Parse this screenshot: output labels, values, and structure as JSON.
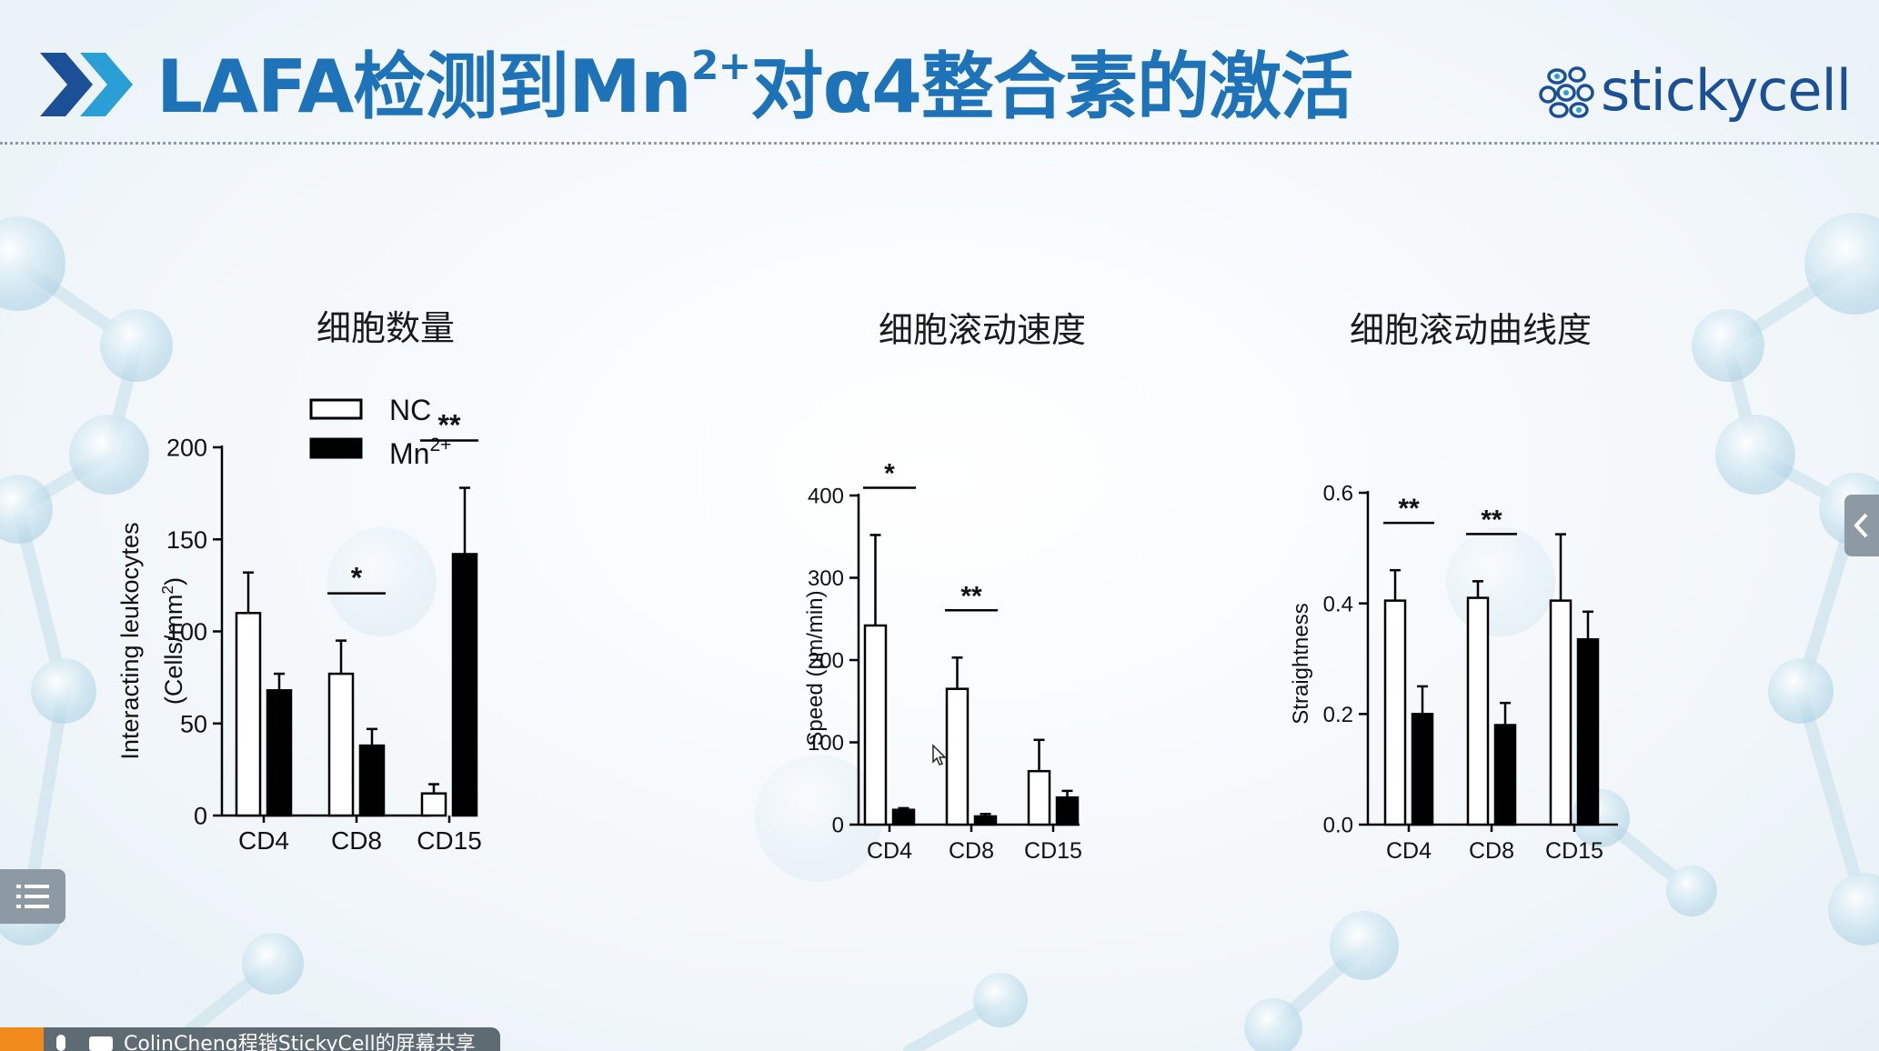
{
  "slide": {
    "title_main": "LAFA检测到Mn",
    "title_sup": "2+",
    "title_rest": "对α4整合素的激活",
    "brand_logo_text": "stickycell",
    "theme_colors": {
      "title": "#1e73b8",
      "logo": "#1b4f96",
      "logo_accent": "#2a9fd6",
      "chevron_dark": "#1b4f96",
      "chevron_light": "#2a9fd6"
    }
  },
  "legend": {
    "nc_label": "NC",
    "mn_label": "Mn",
    "mn_sup": "2+"
  },
  "panels": {
    "count_title": "细胞数量",
    "speed_title": "细胞滚动速度",
    "straightness_title": "细胞滚动曲线度"
  },
  "chart_data": [
    {
      "type": "bar",
      "title": "细胞数量",
      "ylabel": "Interacting leukocytes",
      "ylabel2": "(Cells/mm",
      "ylabel2_sup": "2",
      "ylabel2_end": ")",
      "categories": [
        "CD4",
        "CD8",
        "CD15"
      ],
      "ylim": [
        0,
        200
      ],
      "yticks": [
        0,
        50,
        100,
        150,
        200
      ],
      "series": [
        {
          "name": "NC",
          "values": [
            110,
            77,
            12
          ],
          "errors": [
            22,
            18,
            5
          ],
          "fill": "#ffffff"
        },
        {
          "name": "Mn2+",
          "values": [
            68,
            38,
            142
          ],
          "errors": [
            9,
            9,
            36
          ],
          "fill": "#000000"
        }
      ],
      "significance": [
        "",
        "*",
        "**"
      ],
      "legend_position": "top-left"
    },
    {
      "type": "bar",
      "title": "细胞滚动速度",
      "ylabel": "Speed (µm/min)",
      "categories": [
        "CD4",
        "CD8",
        "CD15"
      ],
      "ylim": [
        0,
        400
      ],
      "yticks": [
        0,
        100,
        200,
        300,
        400
      ],
      "series": [
        {
          "name": "NC",
          "values": [
            242,
            165,
            65
          ],
          "errors": [
            110,
            38,
            38
          ],
          "fill": "#ffffff"
        },
        {
          "name": "Mn2+",
          "values": [
            18,
            10,
            33
          ],
          "errors": [
            2,
            3,
            8
          ],
          "fill": "#000000"
        }
      ],
      "significance": [
        "*",
        "**",
        ""
      ]
    },
    {
      "type": "bar",
      "title": "细胞滚动曲线度",
      "ylabel": "Straightness",
      "categories": [
        "CD4",
        "CD8",
        "CD15"
      ],
      "ylim": [
        0,
        0.6
      ],
      "yticks": [
        "0.0",
        "0.2",
        "0.4",
        "0.6"
      ],
      "series": [
        {
          "name": "NC",
          "values": [
            0.405,
            0.41,
            0.405
          ],
          "errors": [
            0.055,
            0.03,
            0.12
          ],
          "fill": "#ffffff"
        },
        {
          "name": "Mn2+",
          "values": [
            0.2,
            0.18,
            0.335
          ],
          "errors": [
            0.05,
            0.04,
            0.05
          ],
          "fill": "#000000"
        }
      ],
      "significance": [
        "**",
        "**",
        ""
      ]
    }
  ],
  "ui": {
    "side_tab_icon": "chevron-left-icon",
    "menu_icon": "list-icon",
    "share_text": "ColinCheng程锴StickyCell的屏幕共享"
  }
}
